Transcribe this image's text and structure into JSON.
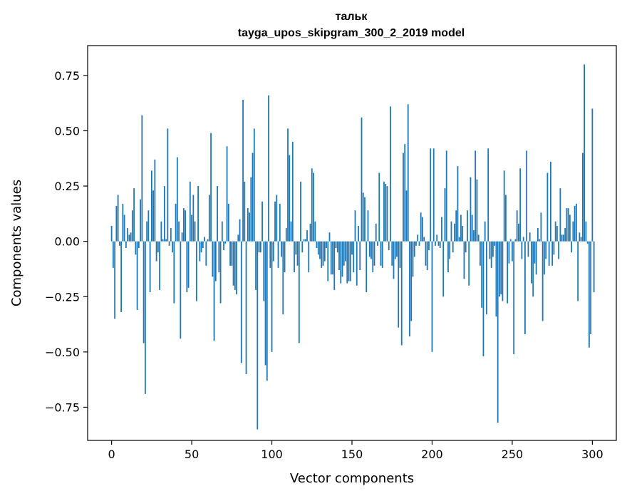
{
  "chart_data": {
    "type": "bar",
    "title": "тальк",
    "subtitle": "tayga_upos_skipgram_300_2_2019 model",
    "xlabel": "Vector components",
    "ylabel": "Components values",
    "xlim": [
      -14.95,
      314.95
    ],
    "ylim": [
      -0.9,
      0.885
    ],
    "xticks": [
      0,
      50,
      100,
      150,
      200,
      250,
      300
    ],
    "xtick_labels": [
      "0",
      "50",
      "100",
      "150",
      "200",
      "250",
      "300"
    ],
    "yticks": [
      -0.75,
      -0.5,
      -0.25,
      0.0,
      0.25,
      0.5,
      0.75
    ],
    "ytick_labels": [
      "−0.75",
      "−0.50",
      "−0.25",
      "0.00",
      "0.25",
      "0.50",
      "0.75"
    ],
    "bar_color": "#1f77b4",
    "grid": false,
    "values": [
      0.07,
      -0.12,
      -0.35,
      0.16,
      0.21,
      -0.02,
      -0.32,
      0.17,
      0.12,
      -0.03,
      0.06,
      0.03,
      0.04,
      0.14,
      0.24,
      -0.06,
      -0.31,
      -0.03,
      0.19,
      0.57,
      -0.46,
      -0.69,
      0.09,
      0.14,
      -0.23,
      0.32,
      0.23,
      0.37,
      -0.09,
      -0.05,
      -0.22,
      0.09,
      0.01,
      0.25,
      0.01,
      0.51,
      -0.02,
      0.06,
      -0.05,
      -0.28,
      0.17,
      0.38,
      0.09,
      -0.44,
      0.04,
      0.15,
      0.14,
      -0.23,
      -0.21,
      0.27,
      0.12,
      0.21,
      0.09,
      -0.27,
      0.25,
      -0.09,
      -0.05,
      -0.03,
      0.02,
      -0.11,
      0.01,
      0.21,
      0.49,
      -0.16,
      -0.45,
      -0.18,
      0.25,
      -0.14,
      -0.28,
      0.09,
      -0.04,
      -0.01,
      0.43,
      0.17,
      -0.11,
      -0.11,
      -0.2,
      -0.22,
      -0.24,
      0.03,
      0.1,
      -0.55,
      0.64,
      0.27,
      -0.6,
      0.15,
      0.13,
      0.29,
      0.4,
      0.51,
      -0.22,
      -0.85,
      -0.05,
      -0.05,
      0.18,
      -0.27,
      -0.56,
      -0.63,
      0.66,
      -0.12,
      -0.5,
      -0.09,
      0.18,
      0.21,
      -0.12,
      0.17,
      -0.07,
      -0.33,
      -0.14,
      0.06,
      0.51,
      0.39,
      0.09,
      0.45,
      -0.14,
      -0.06,
      -0.11,
      -0.46,
      0.27,
      -0.05,
      0.01,
      0.01,
      0.05,
      -0.14,
      0.08,
      0.33,
      0.31,
      0.09,
      -0.03,
      -0.06,
      -0.08,
      -0.12,
      -0.11,
      -0.09,
      -0.03,
      -0.18,
      0.04,
      -0.15,
      -0.15,
      -0.22,
      -0.03,
      -0.05,
      -0.13,
      -0.19,
      -0.16,
      -0.11,
      -0.09,
      -0.19,
      -0.18,
      -0.18,
      -0.06,
      -0.14,
      0.14,
      -0.2,
      0.07,
      -0.13,
      0.56,
      0.22,
      0.2,
      -0.23,
      0.14,
      -0.07,
      -0.08,
      -0.14,
      -0.11,
      0.08,
      -0.02,
      0.31,
      -0.11,
      -0.12,
      0.27,
      0.26,
      0.25,
      -0.04,
      0.61,
      -0.11,
      -0.17,
      -0.08,
      -0.07,
      -0.39,
      -0.12,
      -0.47,
      0.4,
      0.44,
      0.23,
      0.62,
      -0.43,
      -0.36,
      -0.16,
      -0.07,
      -0.02,
      0.03,
      -0.02,
      0.13,
      0.11,
      0.02,
      -0.11,
      -0.13,
      -0.04,
      0.42,
      -0.5,
      0.42,
      -0.02,
      0.03,
      -0.02,
      -0.03,
      0.11,
      -0.25,
      0.24,
      0.41,
      -0.14,
      -0.08,
      0.09,
      -0.05,
      0.08,
      0.14,
      0.34,
      0.02,
      0.12,
      0.07,
      -0.17,
      -0.05,
      0.14,
      -0.2,
      0.29,
      0.12,
      0.05,
      0.41,
      0.28,
      0.03,
      -0.11,
      -0.3,
      -0.52,
      0.09,
      -0.33,
      0.42,
      -0.08,
      -0.12,
      -0.07,
      -0.02,
      -0.34,
      -0.82,
      -0.25,
      -0.24,
      -0.27,
      0.32,
      0.21,
      -0.28,
      -0.1,
      0.01,
      -0.09,
      -0.51,
      0.01,
      0.14,
      0.08,
      0.33,
      -0.08,
      0.02,
      -0.42,
      0.41,
      -0.07,
      0.04,
      -0.19,
      -0.25,
      -0.1,
      -0.15,
      0.06,
      0.01,
      0.13,
      -0.36,
      -0.15,
      -0.08,
      0.31,
      -0.11,
      0.36,
      -0.11,
      -0.06,
      0.09,
      0.07,
      -0.08,
      0.24,
      0.03,
      0.03,
      0.06,
      0.15,
      0.15,
      0.12,
      -0.05,
      0.09,
      0.16,
      0.17,
      -0.27,
      0.04,
      0.02,
      0.4,
      0.8,
      0.09,
      -0.01,
      -0.48,
      -0.42,
      0.6,
      -0.23
    ]
  }
}
